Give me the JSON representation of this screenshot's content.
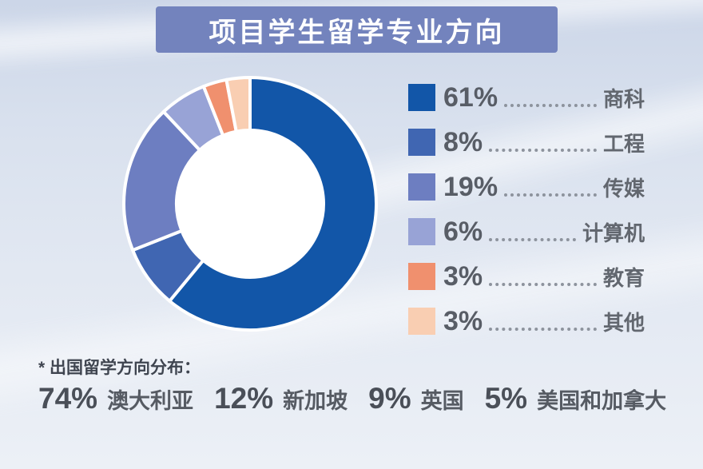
{
  "title": "项目学生留学专业方向",
  "banner_color": "#7383bd",
  "chart_data": {
    "type": "pie",
    "donut": true,
    "title": "项目学生留学专业方向",
    "start_angle_deg": 0,
    "direction": "clockwise",
    "legend_position": "right",
    "segments": [
      {
        "label": "商科",
        "value": 61,
        "display": "61%",
        "color": "#1256a8"
      },
      {
        "label": "工程",
        "value": 8,
        "display": "8%",
        "color": "#4066b2"
      },
      {
        "label": "传媒",
        "value": 19,
        "display": "19%",
        "color": "#6d7ec1"
      },
      {
        "label": "计算机",
        "value": 6,
        "display": "6%",
        "color": "#98a3d6"
      },
      {
        "label": "教育",
        "value": 3,
        "display": "3%",
        "color": "#f0906e"
      },
      {
        "label": "其他",
        "value": 3,
        "display": "3%",
        "color": "#f9ceb2"
      }
    ]
  },
  "footnote": {
    "label": "* 出国留学方向分布：",
    "stats": [
      {
        "percent": "74%",
        "name": "澳大利亚"
      },
      {
        "percent": "12%",
        "name": "新加坡"
      },
      {
        "percent": "9%",
        "name": "英国"
      },
      {
        "percent": "5%",
        "name": "美国和加拿大"
      }
    ]
  }
}
